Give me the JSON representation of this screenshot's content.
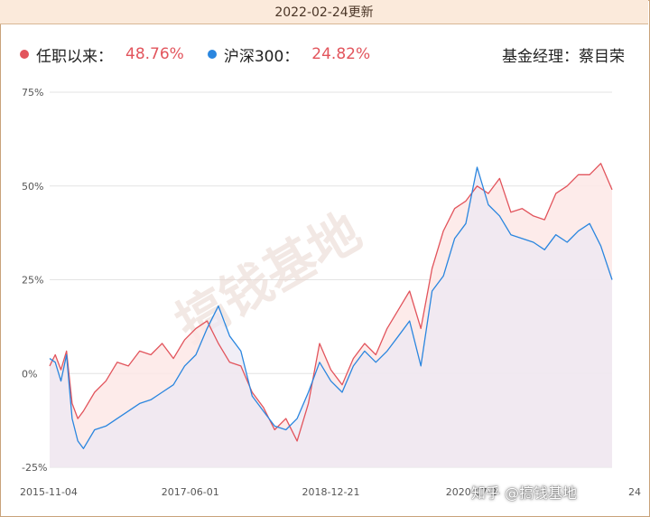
{
  "header": {
    "updated": "2022-02-24更新"
  },
  "legend": {
    "fund_label": "任职以来：",
    "fund_value": "48.76%",
    "bench_label": "沪深300：",
    "bench_value": "24.82%",
    "manager": "基金经理：蔡目荣"
  },
  "watermark": {
    "text": "搞钱基地",
    "overlay": "知乎 @搞钱基地"
  },
  "colors": {
    "fund": "#e2545c",
    "bench": "#2a86df",
    "fund_fill": "#fde8e6",
    "bench_fill": "#ece8f3",
    "grid": "#e3e3e3"
  },
  "chart_data": {
    "type": "line",
    "y_unit": "%",
    "ylim": [
      -25,
      75
    ],
    "yticks": [
      "75%",
      "50%",
      "25%",
      "0%",
      "-25%"
    ],
    "ytick_values": [
      75,
      50,
      25,
      0,
      -25
    ],
    "xticks": [
      "2015-11-04",
      "2017-06-01",
      "2018-12-21",
      "2020-07-2",
      "24"
    ],
    "xtick_positions": [
      0,
      0.25,
      0.5,
      0.75,
      1.0
    ],
    "series": [
      {
        "name": "任职以来",
        "color": "#e2545c",
        "x": [
          0,
          0.01,
          0.02,
          0.03,
          0.04,
          0.05,
          0.06,
          0.08,
          0.1,
          0.12,
          0.14,
          0.16,
          0.18,
          0.2,
          0.22,
          0.24,
          0.26,
          0.28,
          0.3,
          0.32,
          0.34,
          0.36,
          0.38,
          0.4,
          0.42,
          0.44,
          0.46,
          0.48,
          0.5,
          0.52,
          0.54,
          0.56,
          0.58,
          0.6,
          0.62,
          0.64,
          0.66,
          0.68,
          0.7,
          0.72,
          0.74,
          0.76,
          0.78,
          0.8,
          0.82,
          0.84,
          0.86,
          0.88,
          0.9,
          0.92,
          0.94,
          0.96,
          0.98,
          1.0
        ],
        "values": [
          2,
          5,
          1,
          6,
          -8,
          -12,
          -10,
          -5,
          -2,
          3,
          2,
          6,
          5,
          8,
          4,
          9,
          12,
          14,
          8,
          3,
          2,
          -5,
          -9,
          -15,
          -12,
          -18,
          -8,
          8,
          1,
          -3,
          4,
          8,
          5,
          12,
          17,
          22,
          12,
          28,
          38,
          44,
          46,
          50,
          48,
          52,
          43,
          44,
          42,
          41,
          48,
          50,
          53,
          53,
          56,
          49
        ]
      },
      {
        "name": "沪深300",
        "color": "#2a86df",
        "x": [
          0,
          0.01,
          0.02,
          0.03,
          0.04,
          0.05,
          0.06,
          0.08,
          0.1,
          0.12,
          0.14,
          0.16,
          0.18,
          0.2,
          0.22,
          0.24,
          0.26,
          0.28,
          0.3,
          0.32,
          0.34,
          0.36,
          0.38,
          0.4,
          0.42,
          0.44,
          0.46,
          0.48,
          0.5,
          0.52,
          0.54,
          0.56,
          0.58,
          0.6,
          0.62,
          0.64,
          0.66,
          0.68,
          0.7,
          0.72,
          0.74,
          0.76,
          0.78,
          0.8,
          0.82,
          0.84,
          0.86,
          0.88,
          0.9,
          0.92,
          0.94,
          0.96,
          0.98,
          1.0
        ],
        "values": [
          4,
          3,
          -2,
          5,
          -12,
          -18,
          -20,
          -15,
          -14,
          -12,
          -10,
          -8,
          -7,
          -5,
          -3,
          2,
          5,
          12,
          18,
          10,
          6,
          -6,
          -10,
          -14,
          -15,
          -12,
          -5,
          3,
          -2,
          -5,
          2,
          6,
          3,
          6,
          10,
          14,
          2,
          22,
          26,
          36,
          40,
          55,
          45,
          42,
          37,
          36,
          35,
          33,
          37,
          35,
          38,
          40,
          34,
          25
        ]
      }
    ]
  }
}
